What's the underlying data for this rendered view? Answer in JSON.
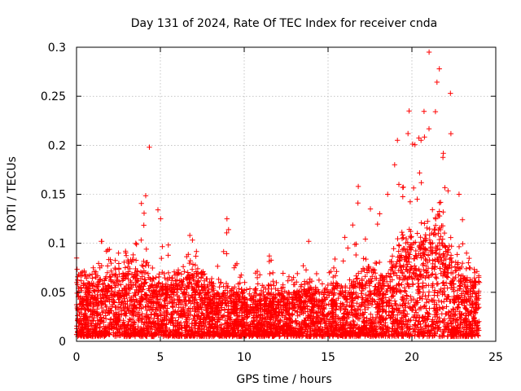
{
  "chart_data": {
    "type": "scatter",
    "title": "Day 131 of 2024, Rate Of TEC Index for receiver cnda",
    "xlabel": "GPS time / hours",
    "ylabel": "ROTI / TECUs",
    "xlim": [
      0,
      25
    ],
    "ylim": [
      0,
      0.3
    ],
    "xticks": [
      0,
      5,
      10,
      15,
      20,
      25
    ],
    "xtick_labels": [
      "0",
      "5",
      "10",
      "15",
      "20",
      "25"
    ],
    "yticks": [
      0,
      0.05,
      0.1,
      0.15,
      0.2,
      0.25,
      0.3
    ],
    "ytick_labels": [
      "0",
      "0.05",
      "0.1",
      "0.15",
      "0.2",
      "0.25",
      "0.3"
    ],
    "grid": true,
    "marker": "+",
    "color": "#ff0000",
    "x_range_of_data": [
      0,
      24
    ],
    "series": [
      {
        "name": "ROTI",
        "envelope": [
          {
            "t": 0.0,
            "upper": 0.06,
            "peak": 0.085
          },
          {
            "t": 1.0,
            "upper": 0.06,
            "peak": 0.075
          },
          {
            "t": 1.5,
            "upper": 0.065,
            "peak": 0.102
          },
          {
            "t": 2.5,
            "upper": 0.07,
            "peak": 0.09
          },
          {
            "t": 3.5,
            "upper": 0.07,
            "peak": 0.1
          },
          {
            "t": 4.3,
            "upper": 0.07,
            "peak": 0.198
          },
          {
            "t": 5.0,
            "upper": 0.06,
            "peak": 0.125
          },
          {
            "t": 6.0,
            "upper": 0.06,
            "peak": 0.07
          },
          {
            "t": 6.8,
            "upper": 0.07,
            "peak": 0.108
          },
          {
            "t": 8.0,
            "upper": 0.05,
            "peak": 0.06
          },
          {
            "t": 9.0,
            "upper": 0.05,
            "peak": 0.125
          },
          {
            "t": 10.0,
            "upper": 0.045,
            "peak": 0.06
          },
          {
            "t": 11.5,
            "upper": 0.05,
            "peak": 0.087
          },
          {
            "t": 13.0,
            "upper": 0.05,
            "peak": 0.065
          },
          {
            "t": 13.8,
            "upper": 0.055,
            "peak": 0.102
          },
          {
            "t": 15.0,
            "upper": 0.05,
            "peak": 0.07
          },
          {
            "t": 16.0,
            "upper": 0.05,
            "peak": 0.106
          },
          {
            "t": 16.8,
            "upper": 0.06,
            "peak": 0.158
          },
          {
            "t": 17.5,
            "upper": 0.065,
            "peak": 0.135
          },
          {
            "t": 18.5,
            "upper": 0.07,
            "peak": 0.15
          },
          {
            "t": 19.2,
            "upper": 0.09,
            "peak": 0.205
          },
          {
            "t": 19.8,
            "upper": 0.1,
            "peak": 0.235
          },
          {
            "t": 20.5,
            "upper": 0.1,
            "peak": 0.205
          },
          {
            "t": 21.0,
            "upper": 0.11,
            "peak": 0.295
          },
          {
            "t": 21.7,
            "upper": 0.12,
            "peak": 0.278
          },
          {
            "t": 22.3,
            "upper": 0.09,
            "peak": 0.253
          },
          {
            "t": 22.8,
            "upper": 0.07,
            "peak": 0.15
          },
          {
            "t": 23.3,
            "upper": 0.065,
            "peak": 0.09
          },
          {
            "t": 24.0,
            "upper": 0.06,
            "peak": 0.06
          }
        ],
        "baseline": 0.025
      }
    ]
  }
}
